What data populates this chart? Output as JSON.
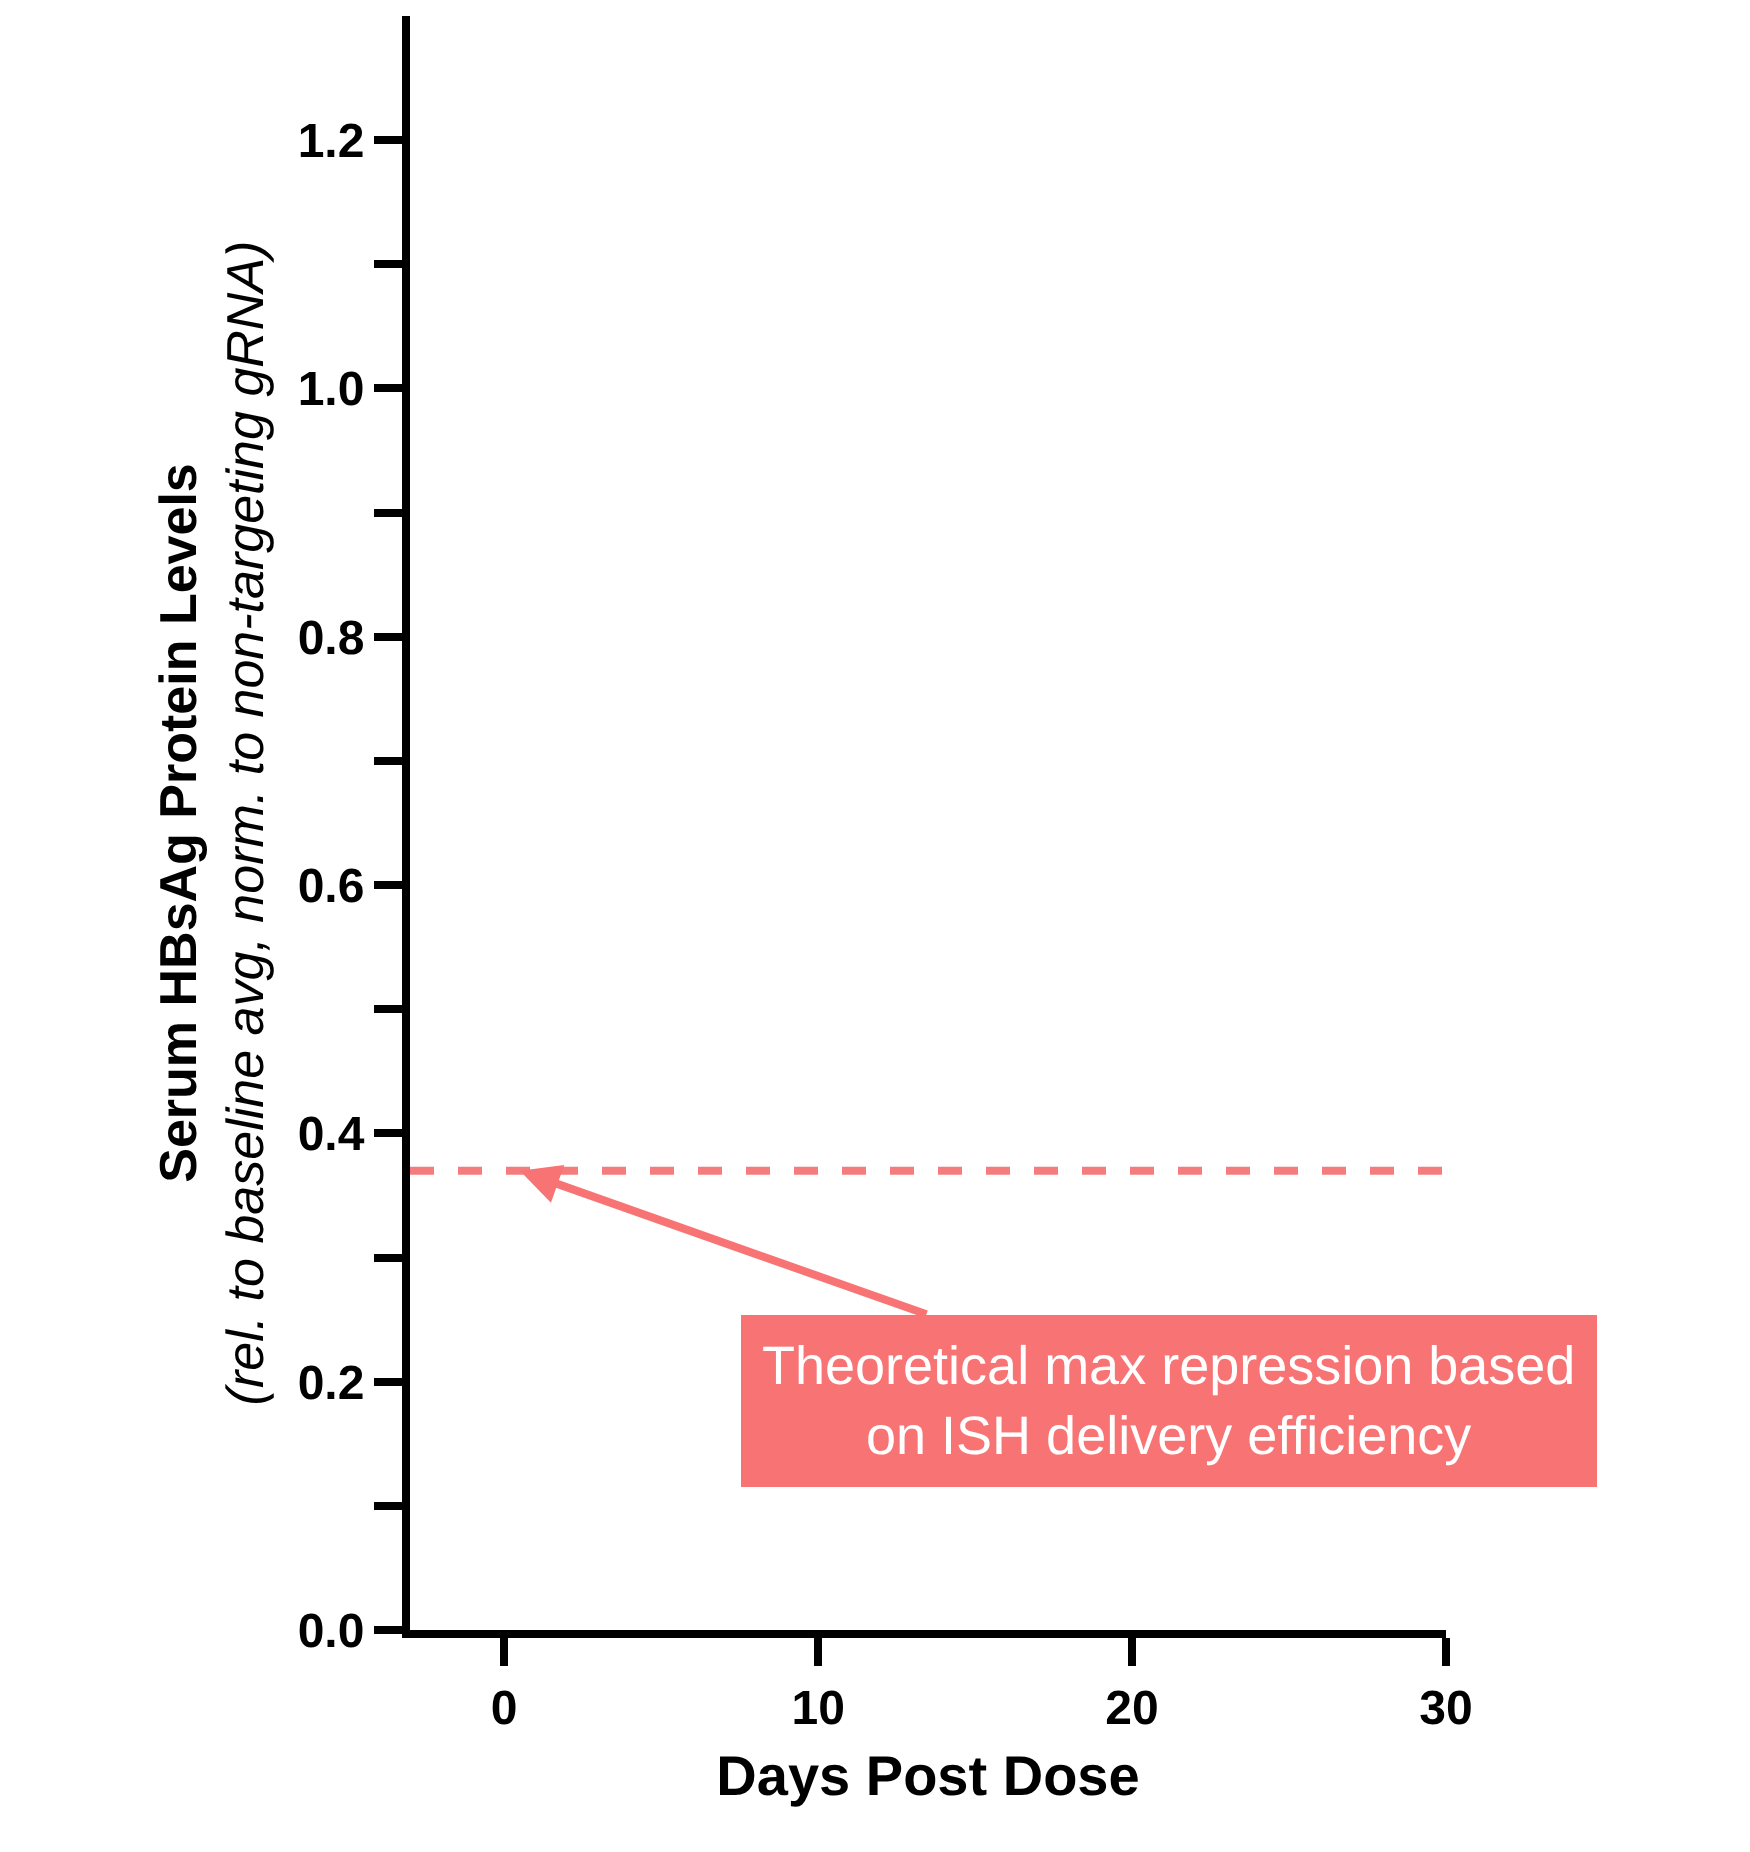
{
  "chart_data": {
    "type": "line",
    "xlabel": "Days Post Dose",
    "ylabel": "Serum HBsAg Protein Levels\n(rel. to baseline avg, norm. to non-targeting gRNA)",
    "xlim": [
      -3,
      30
    ],
    "xticks": [
      0,
      10,
      20,
      30
    ],
    "ylim": [
      0,
      1.3
    ],
    "yticks": [
      {
        "value": 0,
        "label": "0.0"
      },
      {
        "value": 0.1,
        "label": null
      },
      {
        "value": 0.2,
        "label": "0.2"
      },
      {
        "value": 0.3,
        "label": null
      },
      {
        "value": 0.4,
        "label": "0.4"
      },
      {
        "value": 0.5,
        "label": null
      },
      {
        "value": 0.6,
        "label": "0.6"
      },
      {
        "value": 0.7,
        "label": null
      },
      {
        "value": 0.8,
        "label": "0.8"
      },
      {
        "value": 0.9,
        "label": null
      },
      {
        "value": 1.0,
        "label": "1.0"
      },
      {
        "value": 1.1,
        "label": null
      },
      {
        "value": 1.2,
        "label": "1.2"
      }
    ],
    "ref_lines": [
      {
        "axis": "y",
        "value": 0.37,
        "color": "#f47c7c",
        "line_style": "dashed"
      }
    ],
    "annotations": [
      {
        "text": "Theoretical max repression based\non ISH delivery efficiency",
        "x": 0.5,
        "y": 0.37
      }
    ]
  }
}
